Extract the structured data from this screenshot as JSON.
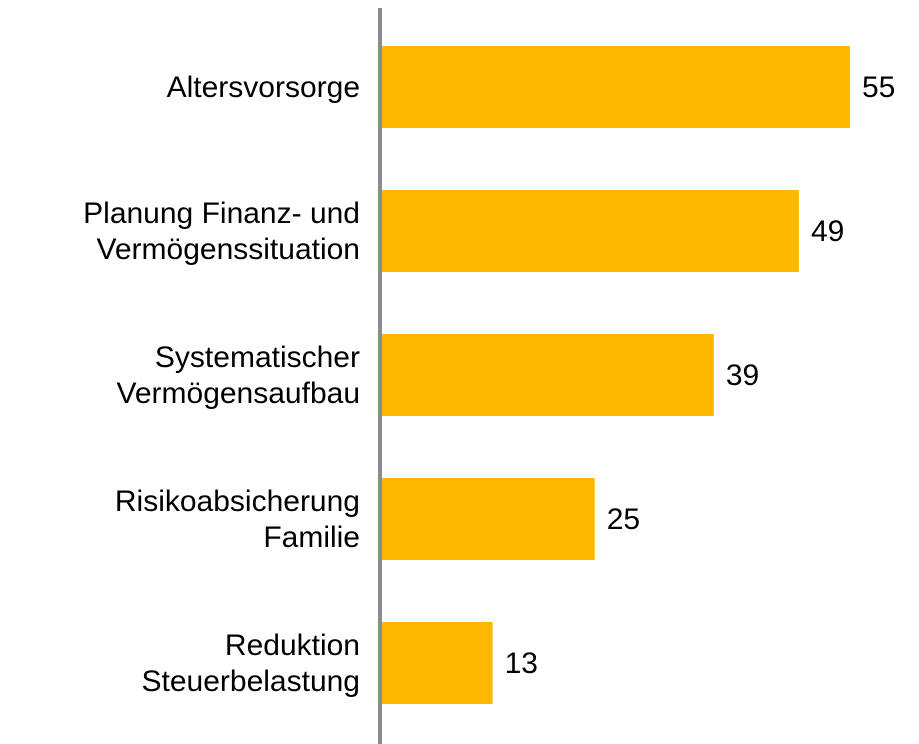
{
  "chart_data": {
    "type": "hbar",
    "categories": [
      [
        "Altersvorsorge"
      ],
      [
        "Planung Finanz- und",
        "Vermögenssituation"
      ],
      [
        "Systematischer",
        "Vermögensaufbau"
      ],
      [
        "Risikoabsicherung",
        "Familie"
      ],
      [
        "Reduktion",
        "Steuerbelastung"
      ]
    ],
    "values": [
      55,
      49,
      39,
      25,
      13
    ],
    "color": "#ffb800",
    "xlim": [
      0,
      55
    ],
    "grid": false
  }
}
